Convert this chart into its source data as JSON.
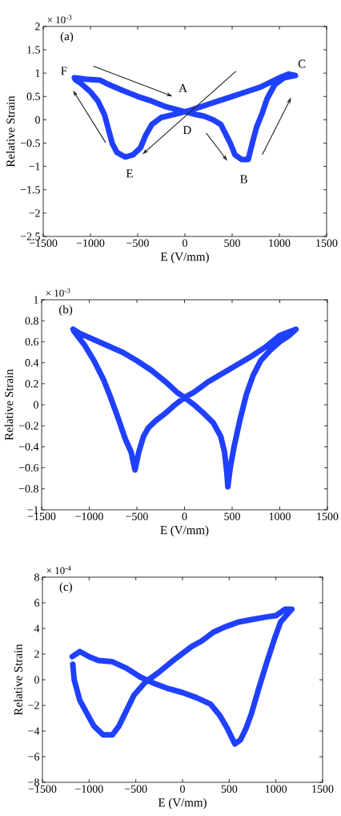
{
  "chart_data": [
    {
      "type": "line",
      "title": "(a)",
      "xlabel": "E (V/mm)",
      "ylabel": "Relative Strain",
      "annotations": [
        "× 10$^{-3}$",
        "F",
        "A",
        "C",
        "D",
        "E",
        "B"
      ],
      "xlim": [
        -1500,
        1500
      ],
      "ylim": [
        -2.5,
        2
      ],
      "xticks": [
        {
          "value": -1500,
          "label": "−1500"
        },
        {
          "value": -1000,
          "label": "−1000"
        },
        {
          "value": -500,
          "label": "−500"
        },
        0,
        500,
        1000,
        1500
      ],
      "yticks": [
        {
          "value": -2.5,
          "label": "−2.5"
        },
        {
          "value": -2,
          "label": "−2"
        },
        {
          "value": -1.5,
          "label": "−1.5"
        },
        {
          "value": -1,
          "label": "−1"
        },
        {
          "value": -0.5,
          "label": "−0.5"
        },
        0,
        0.5,
        1,
        1.5,
        2
      ],
      "series": [
        {
          "color": "#2040ff",
          "x": [
            -1170,
            -1050,
            -900,
            -800,
            -650,
            -500,
            -350,
            -200,
            -50,
            100,
            200,
            300,
            380,
            430,
            480,
            530,
            600,
            670,
            720,
            760,
            820,
            870,
            950,
            1050,
            1170,
            1100,
            1000,
            900,
            800,
            650,
            500,
            350,
            200,
            50,
            -100,
            -250,
            -350,
            -420,
            -470,
            -550,
            -630,
            -720,
            -770,
            -810,
            -850,
            -920,
            -1000,
            -1100,
            -1160
          ],
          "values": [
            0.9,
            0.87,
            0.85,
            0.75,
            0.62,
            0.5,
            0.4,
            0.28,
            0.2,
            0.12,
            0.08,
            0.0,
            -0.1,
            -0.3,
            -0.5,
            -0.75,
            -0.85,
            -0.85,
            -0.45,
            -0.15,
            0.15,
            0.45,
            0.75,
            0.9,
            0.95,
            0.98,
            0.9,
            0.8,
            0.7,
            0.6,
            0.5,
            0.4,
            0.3,
            0.2,
            0.12,
            0.05,
            -0.1,
            -0.35,
            -0.6,
            -0.75,
            -0.8,
            -0.7,
            -0.5,
            -0.2,
            0.1,
            0.4,
            0.6,
            0.78,
            0.86
          ]
        }
      ]
    },
    {
      "type": "line",
      "title": "(b)",
      "xlabel": "E (V/mm)",
      "ylabel": "Relative Strain",
      "annotations": [
        "× 10$^{-3}$"
      ],
      "xlim": [
        -1500,
        1500
      ],
      "ylim": [
        -1,
        1
      ],
      "xticks": [
        {
          "value": -1500,
          "label": "−1500"
        },
        {
          "value": -1000,
          "label": "−1000"
        },
        {
          "value": -500,
          "label": "−500"
        },
        0,
        500,
        1000,
        1500
      ],
      "yticks": [
        {
          "value": -1,
          "label": "−1"
        },
        {
          "value": -0.8,
          "label": "−0.8"
        },
        {
          "value": -0.6,
          "label": "−0.6"
        },
        {
          "value": -0.4,
          "label": "−0.4"
        },
        {
          "value": -0.2,
          "label": "−0.2"
        },
        0,
        0.2,
        0.4,
        0.6,
        0.8,
        1
      ],
      "series": [
        {
          "color": "#2040ff",
          "x": [
            -1170,
            -1100,
            -950,
            -800,
            -650,
            -500,
            -350,
            -200,
            -80,
            0,
            100,
            200,
            300,
            380,
            420,
            445,
            455,
            480,
            520,
            580,
            650,
            720,
            800,
            900,
            1000,
            1100,
            1170,
            1000,
            850,
            700,
            550,
            400,
            250,
            100,
            0,
            -100,
            -200,
            -300,
            -380,
            -430,
            -480,
            -520,
            -560,
            -620,
            -700,
            -780,
            -850,
            -950,
            -1050,
            -1160
          ],
          "values": [
            0.72,
            0.68,
            0.62,
            0.56,
            0.5,
            0.42,
            0.33,
            0.22,
            0.12,
            0.07,
            0.0,
            -0.08,
            -0.17,
            -0.3,
            -0.45,
            -0.65,
            -0.78,
            -0.6,
            -0.4,
            -0.15,
            0.1,
            0.28,
            0.42,
            0.52,
            0.6,
            0.66,
            0.72,
            0.66,
            0.55,
            0.46,
            0.38,
            0.3,
            0.22,
            0.12,
            0.07,
            0.0,
            -0.08,
            -0.15,
            -0.22,
            -0.3,
            -0.45,
            -0.62,
            -0.45,
            -0.33,
            -0.12,
            0.08,
            0.24,
            0.42,
            0.57,
            0.7
          ]
        }
      ]
    },
    {
      "type": "line",
      "title": "(c)",
      "xlabel": "E (V/mm)",
      "ylabel": "Relative Strain",
      "annotations": [
        "× 10$^{-4}$"
      ],
      "xlim": [
        -1500,
        1500
      ],
      "ylim": [
        -8,
        8
      ],
      "xticks": [
        {
          "value": -1500,
          "label": "−1500"
        },
        {
          "value": -1000,
          "label": "−1000"
        },
        {
          "value": -500,
          "label": "−500"
        },
        0,
        500,
        1000,
        1500
      ],
      "yticks": [
        {
          "value": -8,
          "label": "−8"
        },
        {
          "value": -6,
          "label": "−6"
        },
        {
          "value": -4,
          "label": "−4"
        },
        {
          "value": -2,
          "label": "−2"
        },
        0,
        2,
        4,
        6,
        8
      ],
      "series": [
        {
          "color": "#2040ff",
          "x": [
            -1180,
            -1100,
            -1000,
            -900,
            -750,
            -600,
            -450,
            -300,
            -150,
            0,
            150,
            300,
            400,
            480,
            560,
            620,
            680,
            740,
            820,
            900,
            990,
            1050,
            1170,
            1100,
            1000,
            900,
            750,
            600,
            450,
            330,
            200,
            100,
            -100,
            -250,
            -400,
            -520,
            -600,
            -680,
            -750,
            -850,
            -950,
            -1100,
            -1160,
            -1175
          ],
          "values": [
            1.8,
            2.2,
            1.8,
            1.5,
            1.4,
            0.9,
            0.2,
            -0.3,
            -0.7,
            -1.0,
            -1.4,
            -1.9,
            -2.8,
            -3.8,
            -5.0,
            -4.7,
            -3.8,
            -2.6,
            -0.6,
            1.3,
            3.3,
            4.5,
            5.5,
            5.5,
            5.0,
            4.9,
            4.7,
            4.5,
            4.1,
            3.7,
            3.0,
            2.6,
            1.5,
            0.6,
            -0.2,
            -1.2,
            -2.4,
            -3.6,
            -4.3,
            -4.3,
            -3.6,
            -1.6,
            0.0,
            1.2
          ]
        }
      ]
    }
  ]
}
